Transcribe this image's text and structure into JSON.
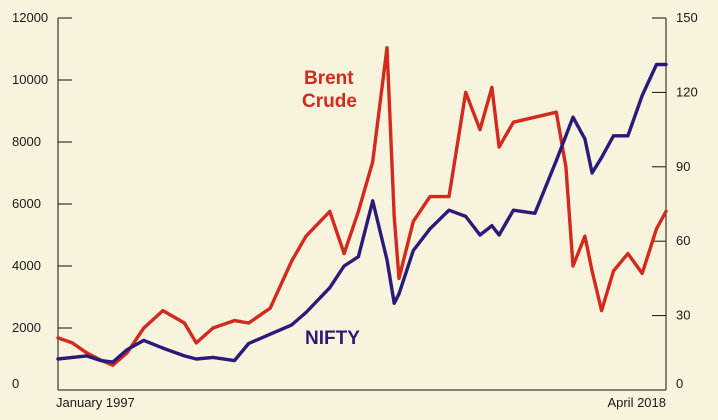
{
  "chart_data": {
    "type": "line",
    "title": "",
    "colors": {
      "background": "#f8f3dd",
      "brent": "#d22a1c",
      "nifty": "#2a1a7a",
      "axis": "#111111"
    },
    "x_axis": {
      "start_label": "January 1997",
      "end_label": "April 2018",
      "range": [
        "1997-01",
        "2018-04"
      ]
    },
    "left_axis": {
      "min": 0,
      "max": 12000,
      "ticks": [
        0,
        2000,
        4000,
        6000,
        8000,
        10000,
        12000
      ],
      "tick_labels": [
        "0",
        "2000",
        "4000",
        "6000",
        "8000",
        "10000",
        "12000"
      ]
    },
    "right_axis": {
      "min": 0,
      "max": 150,
      "ticks": [
        0,
        30,
        60,
        90,
        120,
        150
      ],
      "tick_labels": [
        "0",
        "30",
        "60",
        "90",
        "120",
        "150"
      ]
    },
    "grid": false,
    "series": [
      {
        "name_lines": [
          "Brent",
          "Crude"
        ],
        "axis": "right",
        "color": "#d22a1c",
        "x": [
          "1997-01",
          "1997-07",
          "1998-01",
          "1998-07",
          "1998-12",
          "1999-06",
          "2000-01",
          "2000-09",
          "2001-06",
          "2001-11",
          "2002-06",
          "2003-03",
          "2003-09",
          "2004-06",
          "2005-03",
          "2005-09",
          "2006-07",
          "2007-01",
          "2007-07",
          "2008-01",
          "2008-07",
          "2008-10",
          "2008-12",
          "2009-06",
          "2010-01",
          "2010-09",
          "2011-04",
          "2011-10",
          "2012-03",
          "2012-06",
          "2012-12",
          "2013-09",
          "2014-06",
          "2014-10",
          "2015-01",
          "2015-06",
          "2015-09",
          "2016-01",
          "2016-06",
          "2016-12",
          "2017-06",
          "2017-12",
          "2018-04"
        ],
        "values": [
          21,
          19,
          15,
          12,
          10,
          15,
          25,
          32,
          27,
          19,
          25,
          28,
          27,
          33,
          52,
          62,
          72,
          55,
          72,
          92,
          138,
          70,
          45,
          68,
          78,
          78,
          120,
          105,
          122,
          98,
          108,
          110,
          112,
          90,
          50,
          62,
          48,
          32,
          48,
          55,
          47,
          65,
          72
        ]
      },
      {
        "name": "NIFTY",
        "axis": "left",
        "color": "#2a1a7a",
        "x": [
          "1997-01",
          "1997-07",
          "1998-01",
          "1998-07",
          "1998-12",
          "1999-06",
          "2000-01",
          "2000-09",
          "2001-06",
          "2001-11",
          "2002-06",
          "2003-03",
          "2003-09",
          "2004-06",
          "2005-03",
          "2005-09",
          "2006-07",
          "2007-01",
          "2007-07",
          "2008-01",
          "2008-07",
          "2008-10",
          "2008-12",
          "2009-06",
          "2010-01",
          "2010-09",
          "2011-04",
          "2011-10",
          "2012-03",
          "2012-06",
          "2012-12",
          "2013-09",
          "2014-06",
          "2014-10",
          "2015-01",
          "2015-06",
          "2015-09",
          "2016-01",
          "2016-06",
          "2016-12",
          "2017-06",
          "2017-12",
          "2018-04"
        ],
        "values": [
          1000,
          1050,
          1100,
          950,
          900,
          1300,
          1600,
          1350,
          1100,
          1000,
          1050,
          950,
          1500,
          1800,
          2100,
          2500,
          3300,
          4000,
          4300,
          6100,
          4200,
          2800,
          3100,
          4500,
          5200,
          5800,
          5600,
          5000,
          5300,
          5000,
          5800,
          5700,
          7400,
          8200,
          8800,
          8100,
          7000,
          7500,
          8200,
          8200,
          9500,
          10500,
          10500
        ]
      }
    ]
  }
}
